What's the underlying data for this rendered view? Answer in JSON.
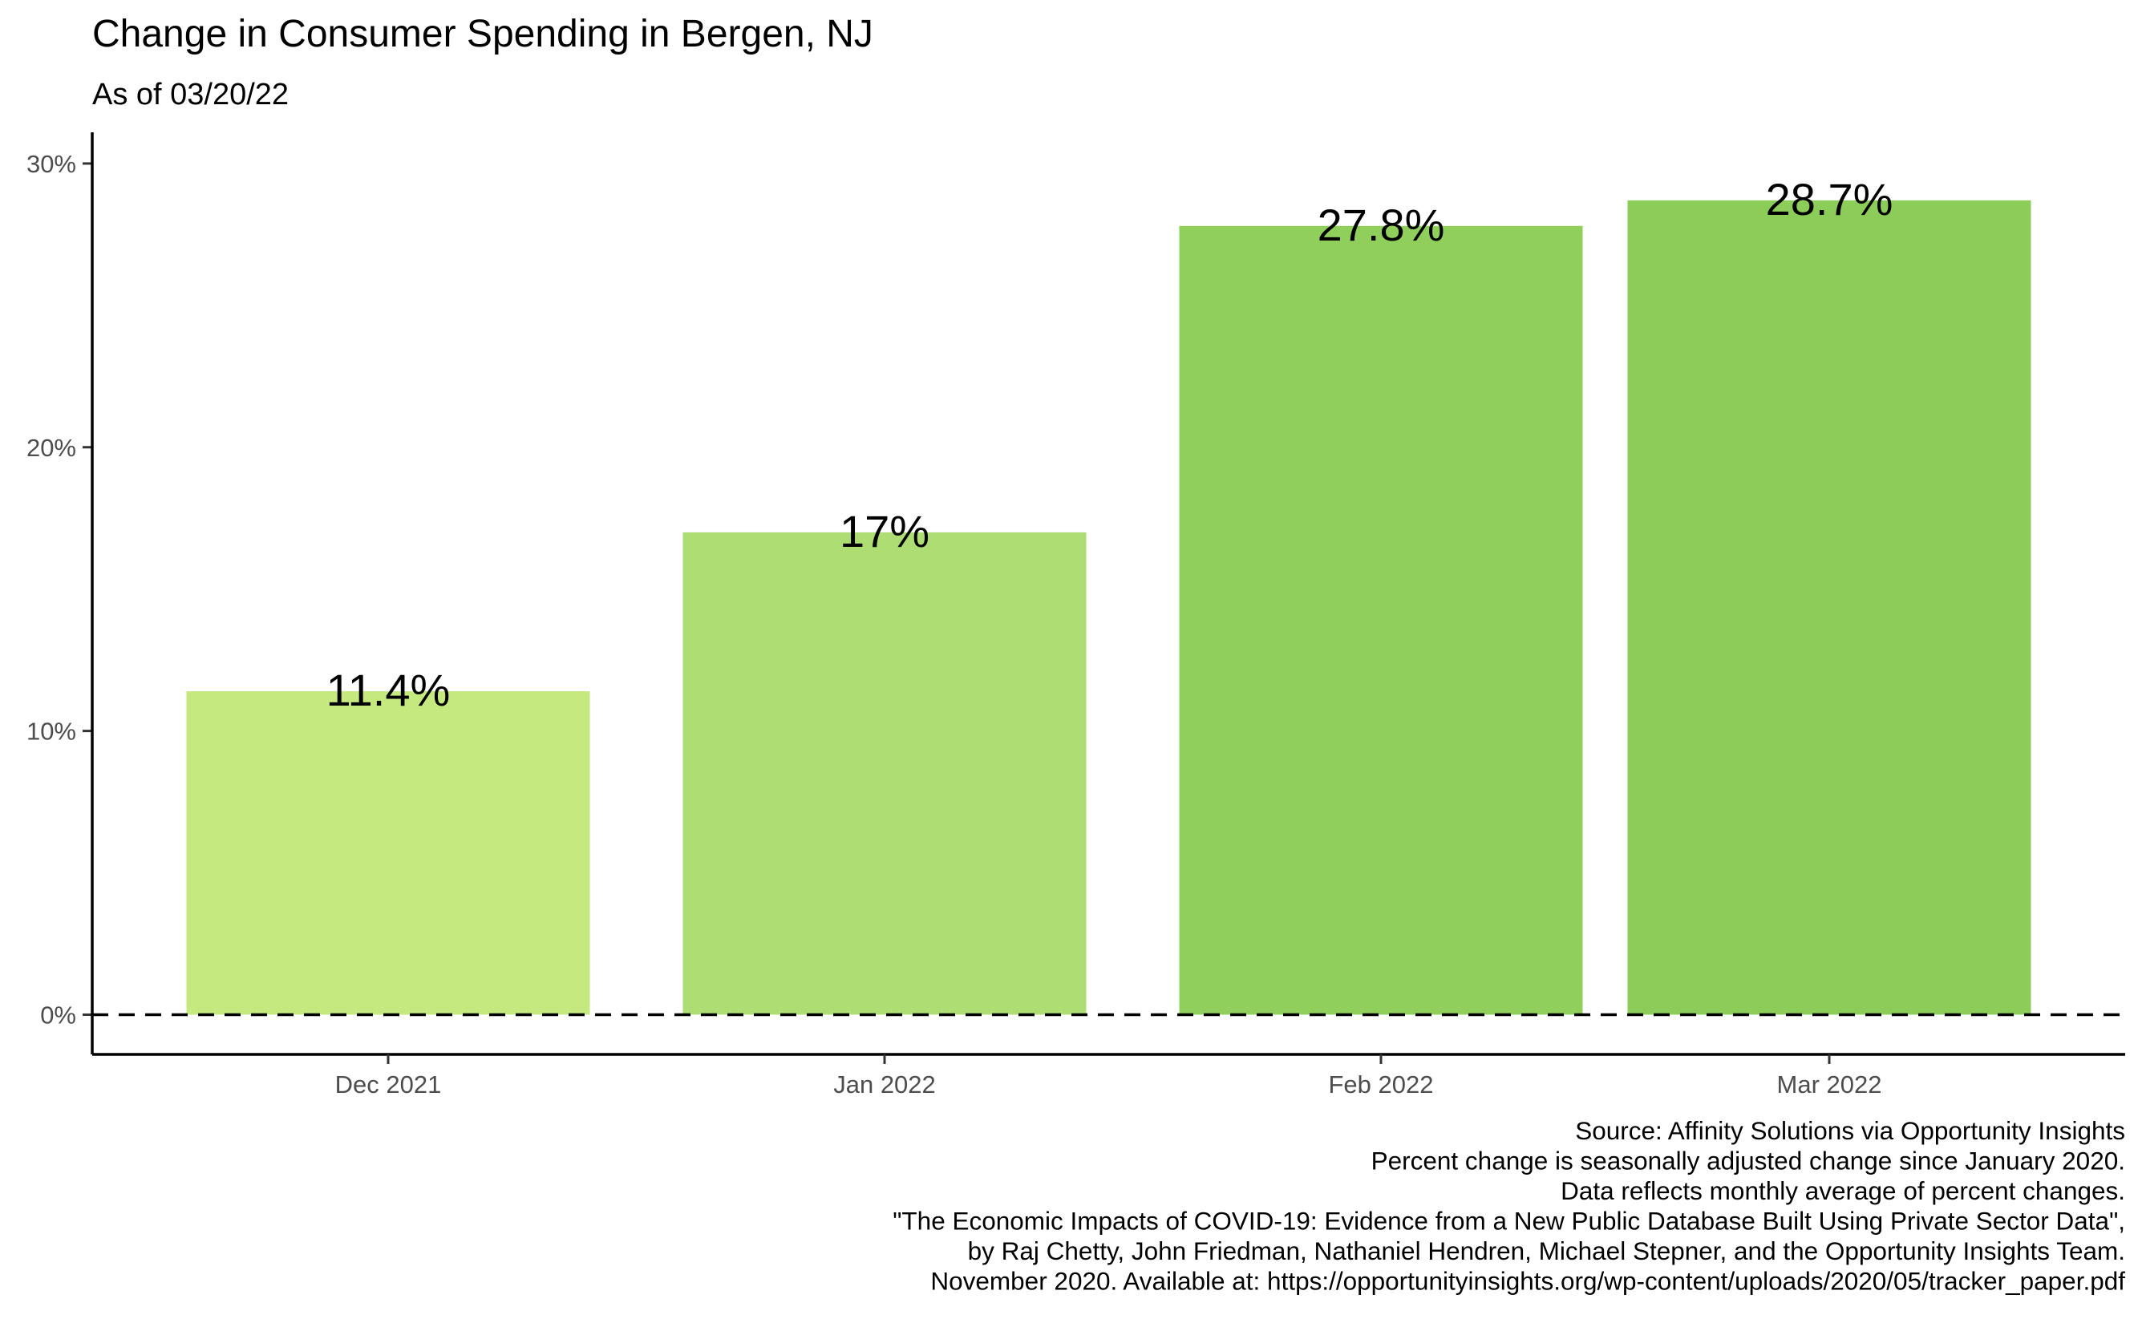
{
  "chart_data": {
    "type": "bar",
    "title": "Change in Consumer Spending in Bergen, NJ",
    "subtitle": "As of 03/20/22",
    "xlabel": "",
    "ylabel": "",
    "categories": [
      "Dec 2021",
      "Jan 2022",
      "Feb 2022",
      "Mar 2022"
    ],
    "values": [
      11.4,
      17.0,
      27.8,
      28.7
    ],
    "value_labels": [
      "11.4%",
      "17%",
      "27.8%",
      "28.7%"
    ],
    "colors": [
      "#C5E87F",
      "#AEDD73",
      "#91CF5C",
      "#8CCC58"
    ],
    "ylim": [
      -1.4,
      31.1
    ],
    "yticks": [
      0,
      10,
      20,
      30
    ],
    "ytick_labels": [
      "0%",
      "10%",
      "20%",
      "30%"
    ],
    "reference_line": {
      "value": 0,
      "style": "dashed"
    },
    "grid": false,
    "legend": "none",
    "caption": [
      "Source: Affinity Solutions via Opportunity Insights",
      "Percent change is seasonally adjusted change since January 2020.",
      "Data reflects monthly average of percent changes.",
      "\"The Economic Impacts of COVID-19: Evidence from a New Public Database Built Using Private Sector Data\",",
      "by Raj Chetty, John Friedman, Nathaniel Hendren, Michael Stepner, and the Opportunity Insights Team.",
      "November 2020. Available at: https://opportunityinsights.org/wp-content/uploads/2020/05/tracker_paper.pdf"
    ]
  }
}
